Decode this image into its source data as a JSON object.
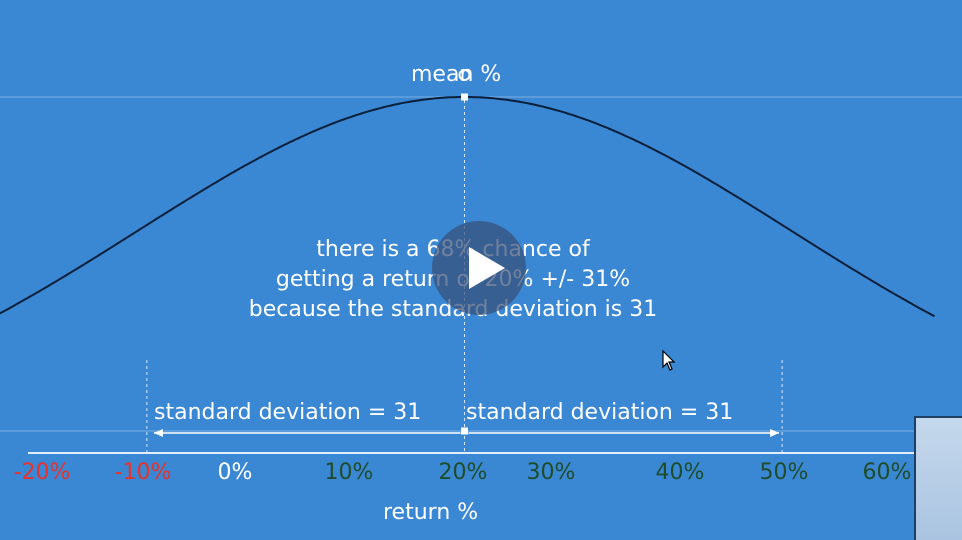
{
  "slide": {
    "mean_label": "mean %",
    "annotation_lines": [
      "there is a 68% chance of",
      "getting a return of 20% +/- 31%",
      "because the standard deviation is 31"
    ],
    "sd_left_label": "standard deviation = 31",
    "sd_right_label": "standard deviation = 31",
    "x_axis_title": "return %",
    "colors": {
      "background": "#3a87d3",
      "curve": "#0b1f3a",
      "negative_tick": "#e8322a",
      "zero_tick": "#ffffff",
      "positive_tick": "#1e4d2b"
    }
  },
  "chart_data": {
    "type": "line",
    "distribution": "normal",
    "mean": 20,
    "std_dev": 31,
    "x_ticks": [
      "-20%",
      "-10%",
      "0%",
      "10%",
      "20%",
      "30%",
      "40%",
      "50%",
      "60%"
    ],
    "x_tick_values": [
      -20,
      -10,
      0,
      10,
      20,
      30,
      40,
      50,
      60
    ],
    "xlabel": "return %",
    "xlim": [
      -23,
      64
    ]
  },
  "player": {
    "play_icon": "play-icon",
    "cursor_icon": "pointer-cursor-icon"
  }
}
